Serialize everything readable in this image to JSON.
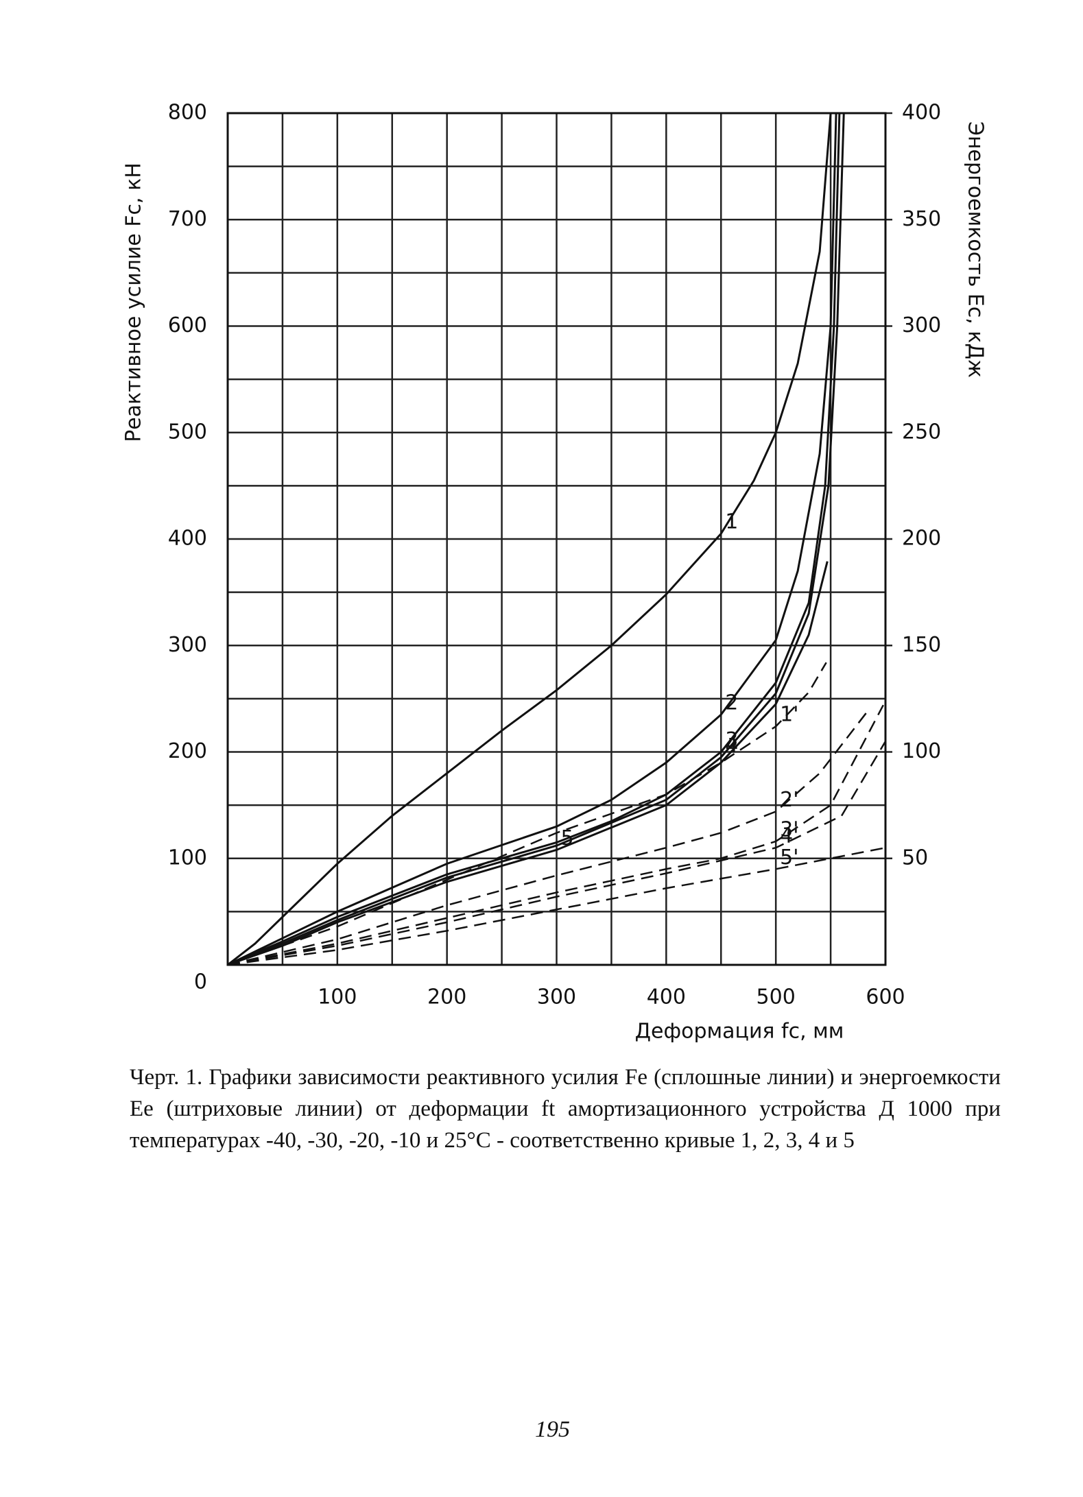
{
  "chart_data": {
    "type": "line",
    "ylabel": "Реактивное усилие Fc, кН",
    "y2label": "Энергоемкость Ec, кДж",
    "xlabel": "Деформация fc, мм",
    "xlim": [
      0,
      600
    ],
    "xticks": [
      100,
      200,
      300,
      400,
      500,
      600
    ],
    "ylim": [
      0,
      800
    ],
    "yticks": [
      0,
      100,
      200,
      300,
      400,
      500,
      600,
      700,
      800
    ],
    "y2lim": [
      0,
      400
    ],
    "y2ticks": [
      50,
      100,
      150,
      200,
      250,
      300,
      350,
      400
    ],
    "x_minor_grid": [
      50,
      150,
      250,
      350,
      450,
      550
    ],
    "y_minor_grid": [
      50,
      150,
      250,
      350,
      450,
      550,
      650,
      750
    ],
    "grid": true,
    "series": [
      {
        "name": "1",
        "color": "#111",
        "x": [
          0,
          25,
          50,
          100,
          150,
          200,
          250,
          300,
          350,
          400,
          450,
          480,
          500,
          520,
          540,
          550
        ],
        "values": [
          0,
          20,
          45,
          95,
          140,
          180,
          220,
          258,
          300,
          348,
          405,
          455,
          500,
          565,
          670,
          800
        ]
      },
      {
        "name": "2",
        "color": "#111",
        "x": [
          0,
          50,
          100,
          200,
          300,
          350,
          400,
          450,
          500,
          520,
          540,
          550,
          555
        ],
        "values": [
          0,
          25,
          50,
          95,
          130,
          155,
          190,
          235,
          305,
          370,
          480,
          600,
          800
        ]
      },
      {
        "name": "3",
        "color": "#111",
        "x": [
          0,
          50,
          100,
          200,
          300,
          350,
          400,
          450,
          500,
          530,
          545,
          553,
          558
        ],
        "values": [
          0,
          22,
          45,
          85,
          115,
          135,
          160,
          200,
          265,
          340,
          450,
          600,
          800
        ]
      },
      {
        "name": "4",
        "color": "#111",
        "x": [
          0,
          50,
          100,
          200,
          300,
          400,
          450,
          500,
          530,
          548,
          556,
          562
        ],
        "values": [
          0,
          20,
          42,
          82,
          112,
          155,
          195,
          255,
          330,
          450,
          600,
          800
        ]
      },
      {
        "name": "5",
        "color": "#111",
        "x": [
          0,
          50,
          100,
          200,
          300,
          400,
          450,
          500,
          530,
          547
        ],
        "values": [
          0,
          18,
          40,
          78,
          108,
          150,
          190,
          245,
          310,
          379
        ]
      },
      {
        "name": "1'",
        "color": "#111",
        "axis": "y2",
        "dashed": true,
        "x": [
          0,
          100,
          200,
          300,
          400,
          450,
          500,
          530,
          546
        ],
        "values": [
          0,
          18,
          40,
          62,
          80,
          95,
          112,
          128,
          142
        ]
      },
      {
        "name": "2'",
        "color": "#111",
        "axis": "y2",
        "dashed": true,
        "x": [
          0,
          100,
          200,
          300,
          400,
          450,
          500,
          540,
          585
        ],
        "values": [
          0,
          12,
          28,
          42,
          55,
          62,
          72,
          90,
          120
        ]
      },
      {
        "name": "3'",
        "color": "#111",
        "axis": "y2",
        "dashed": true,
        "x": [
          0,
          100,
          200,
          300,
          400,
          450,
          500,
          550,
          598
        ],
        "values": [
          0,
          10,
          22,
          34,
          45,
          50,
          58,
          75,
          122
        ]
      },
      {
        "name": "4'",
        "color": "#111",
        "axis": "y2",
        "dashed": true,
        "x": [
          0,
          100,
          200,
          300,
          400,
          500,
          560,
          600
        ],
        "values": [
          0,
          9,
          20,
          32,
          43,
          55,
          70,
          105
        ]
      },
      {
        "name": "5'",
        "color": "#111",
        "axis": "y2",
        "dashed": true,
        "x": [
          0,
          100,
          200,
          300,
          400,
          500,
          550,
          600
        ],
        "values": [
          0,
          7,
          16,
          26,
          36,
          45,
          50,
          55
        ]
      }
    ]
  },
  "caption": "Черт. 1. Графики зависимости реактивного усилия Fe (сплошные линии) и энергоемкости Ee (штриховые линии) от деформации ft амортизационного устройства Д 1000 при температурах -40, -30, -20, -10 и 25°С - соответственно кривые 1, 2, 3, 4 и 5",
  "page_number": "195"
}
